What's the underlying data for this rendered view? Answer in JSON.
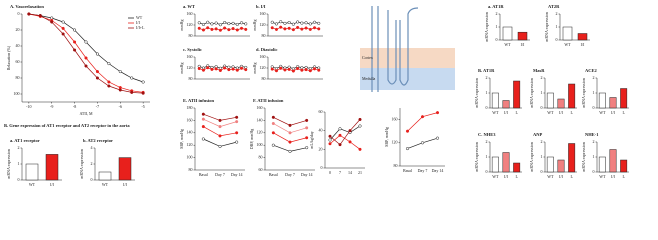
{
  "chart_data": [
    {
      "type": "line",
      "title": "A. Vasorelaxation",
      "x_label": "ATII, M",
      "y_label": "Relaxation (%)",
      "x": [
        -10,
        -9.5,
        -9,
        -8.5,
        -8,
        -7.5,
        -7,
        -6.5,
        -6,
        -5.5,
        -5
      ],
      "xlim": [
        -10.3,
        -4.7
      ],
      "xticks": [
        -10,
        -9,
        -8,
        -7,
        -6,
        -5
      ],
      "ylim": [
        110,
        0
      ],
      "yticks": [
        0,
        20,
        40,
        60,
        80,
        100
      ],
      "series": [
        {
          "name": "WT",
          "color": "#222222",
          "values": [
            0,
            2,
            5,
            10,
            20,
            35,
            50,
            62,
            72,
            80,
            85
          ]
        },
        {
          "name": "I/I",
          "color": "#e8201c",
          "values": [
            0,
            3,
            8,
            18,
            35,
            55,
            72,
            85,
            92,
            96,
            98
          ]
        },
        {
          "name": "I/I+L",
          "color": "#a01010",
          "values": [
            0,
            2,
            10,
            25,
            45,
            65,
            80,
            90,
            95,
            98,
            99
          ]
        }
      ]
    },
    {
      "type": "bar",
      "heading": "B. Gene expression of AT1 receptor and AT2 receptor in the aorta",
      "title": "a. AT1 receptor",
      "y_label": "mRNA expression",
      "categories": [
        "WT",
        "I/I"
      ],
      "values": [
        1,
        1.6
      ],
      "colors": [
        "#ffffff",
        "#e8201c"
      ],
      "ylim": [
        0,
        2
      ],
      "yticks": [
        0,
        1,
        2
      ]
    },
    {
      "type": "bar",
      "title": "b. AT2 receptor",
      "y_label": "mRNA expression",
      "categories": [
        "WT",
        "I/I"
      ],
      "values": [
        1,
        2.8
      ],
      "colors": [
        "#ffffff",
        "#e8201c"
      ],
      "ylim": [
        0,
        4
      ],
      "yticks": [
        0,
        2,
        4
      ]
    },
    {
      "type": "line",
      "title": "a. WT",
      "y_label": "mmHg",
      "x": [
        1,
        2,
        3,
        4,
        5,
        6,
        7,
        8,
        9,
        10,
        11,
        12
      ],
      "xlim": [
        0,
        13
      ],
      "xticks": [],
      "ylim": [
        80,
        160
      ],
      "yticks": [
        80,
        120,
        160
      ],
      "series": [
        {
          "name": "SBP",
          "color": "#222222",
          "values": [
            128,
            122,
            130,
            124,
            127,
            121,
            129,
            125,
            126,
            122,
            128,
            124
          ]
        },
        {
          "name": "DBP",
          "color": "#e8201c",
          "values": [
            108,
            102,
            110,
            104,
            106,
            101,
            109,
            103,
            107,
            102,
            108,
            104
          ]
        }
      ]
    },
    {
      "type": "line",
      "title": "b. I/I",
      "y_label": "mmHg",
      "x": [
        1,
        2,
        3,
        4,
        5,
        6,
        7,
        8,
        9,
        10,
        11,
        12
      ],
      "xlim": [
        0,
        13
      ],
      "xticks": [],
      "ylim": [
        80,
        160
      ],
      "yticks": [
        80,
        120,
        160
      ],
      "series": [
        {
          "name": "SBP",
          "color": "#222222",
          "values": [
            130,
            124,
            132,
            126,
            129,
            123,
            131,
            127,
            128,
            124,
            130,
            126
          ]
        },
        {
          "name": "DBP",
          "color": "#e8201c",
          "values": [
            110,
            104,
            112,
            106,
            108,
            103,
            111,
            105,
            109,
            104,
            110,
            106
          ]
        }
      ]
    },
    {
      "type": "line",
      "title": "c. Systolic",
      "y_label": "mmHg",
      "x": [
        1,
        2,
        3,
        4,
        5,
        6,
        7,
        8,
        9,
        10,
        11,
        12
      ],
      "xlim": [
        0,
        13
      ],
      "xticks": [],
      "ylim": [
        80,
        160
      ],
      "yticks": [
        80,
        120,
        160
      ],
      "series": [
        {
          "name": "WT",
          "color": "#222222",
          "values": [
            126,
            120,
            128,
            122,
            125,
            119,
            127,
            123,
            124,
            120,
            126,
            122
          ]
        },
        {
          "name": "I/I",
          "color": "#e8201c",
          "values": [
            118,
            112,
            121,
            115,
            117,
            111,
            120,
            114,
            116,
            112,
            119,
            114
          ]
        }
      ]
    },
    {
      "type": "line",
      "title": "d. Diastolic",
      "y_label": "mmHg",
      "x": [
        1,
        2,
        3,
        4,
        5,
        6,
        7,
        8,
        9,
        10,
        11,
        12
      ],
      "xlim": [
        0,
        13
      ],
      "xticks": [],
      "ylim": [
        80,
        160
      ],
      "yticks": [
        80,
        120,
        160
      ],
      "series": [
        {
          "name": "WT",
          "color": "#222222",
          "values": [
            124,
            118,
            126,
            120,
            123,
            117,
            125,
            121,
            122,
            118,
            124,
            120
          ]
        },
        {
          "name": "I/I",
          "color": "#e8201c",
          "values": [
            116,
            110,
            119,
            113,
            115,
            109,
            118,
            112,
            114,
            110,
            117,
            112
          ]
        }
      ]
    },
    {
      "type": "line",
      "title": "E. ATII infusion",
      "y_label": "SBP, mmHg",
      "categories": [
        "Basal",
        "Day 7",
        "Day 14"
      ],
      "ylim": [
        80,
        180
      ],
      "yticks": [
        80,
        100,
        120,
        140,
        160,
        180
      ],
      "series": [
        {
          "name": "WT",
          "color": "#222222",
          "values": [
            130,
            118,
            125
          ]
        },
        {
          "name": "I/I",
          "color": "#e8201c",
          "values": [
            150,
            135,
            140
          ]
        },
        {
          "name": "WT+ATII",
          "color": "#f08080",
          "values": [
            162,
            150,
            158
          ]
        },
        {
          "name": "I/I+ATII",
          "color": "#a01010",
          "values": [
            170,
            160,
            165
          ]
        }
      ]
    },
    {
      "type": "line",
      "title": "F. ATII infusion",
      "y_label": "DBP, mmHg",
      "categories": [
        "Basal",
        "Day 7",
        "Day 14"
      ],
      "ylim": [
        60,
        160
      ],
      "yticks": [
        60,
        80,
        100,
        120,
        140,
        160
      ],
      "series": [
        {
          "name": "WT",
          "color": "#222222",
          "values": [
            100,
            90,
            96
          ]
        },
        {
          "name": "I/I",
          "color": "#e8201c",
          "values": [
            120,
            105,
            112
          ]
        },
        {
          "name": "WT+ATII",
          "color": "#f08080",
          "values": [
            135,
            120,
            128
          ]
        },
        {
          "name": "I/I+ATII",
          "color": "#a01010",
          "values": [
            145,
            132,
            140
          ]
        }
      ]
    },
    {
      "type": "line",
      "y_label": "mL/kg/day",
      "categories": [
        "0",
        "7",
        "14",
        "21"
      ],
      "ylim": [
        0,
        60
      ],
      "yticks": [
        0,
        20,
        40,
        60
      ],
      "series": [
        {
          "name": "WT",
          "color": "#222222",
          "values": [
            30,
            42,
            38,
            45
          ]
        },
        {
          "name": "I/I",
          "color": "#e8201c",
          "values": [
            26,
            35,
            28,
            20
          ]
        },
        {
          "name": "I/I+L",
          "color": "#a01010",
          "values": [
            34,
            25,
            40,
            52
          ]
        }
      ]
    },
    {
      "type": "line",
      "y_label": "SBP, mmHg",
      "categories": [
        "Basal",
        "Day 7",
        "Day 14"
      ],
      "ylim": [
        80,
        180
      ],
      "yticks": [
        80,
        120,
        160
      ],
      "series": [
        {
          "name": "WT",
          "color": "#222222",
          "values": [
            110,
            120,
            128
          ]
        },
        {
          "name": "I/I",
          "color": "#e8201c",
          "values": [
            140,
            165,
            172
          ]
        }
      ]
    },
    {
      "type": "bar",
      "title": "a. AT1R",
      "y_label": "mRNA expression",
      "categories": [
        "WT",
        "I/I"
      ],
      "values": [
        1,
        0.6
      ],
      "colors": [
        "#ffffff",
        "#e8201c"
      ],
      "ylim": [
        0,
        2
      ],
      "yticks": [
        0,
        1,
        2
      ]
    },
    {
      "type": "bar",
      "title": "AT2R",
      "y_label": "mRNA expression",
      "categories": [
        "WT",
        "I/I"
      ],
      "values": [
        1,
        0.5
      ],
      "colors": [
        "#ffffff",
        "#e8201c"
      ],
      "ylim": [
        0,
        2
      ],
      "yticks": [
        0,
        1,
        2
      ]
    },
    {
      "type": "bar",
      "title": "B. AT1R",
      "y_label": "mRNA expression",
      "categories": [
        "WT",
        "I/I",
        "L"
      ],
      "values": [
        1,
        0.5,
        1.8
      ],
      "colors": [
        "#ffffff",
        "#f08080",
        "#e8201c"
      ],
      "ylim": [
        0,
        2
      ],
      "yticks": [
        0,
        1,
        2
      ]
    },
    {
      "type": "bar",
      "title": "MasR",
      "y_label": "mRNA expression",
      "categories": [
        "WT",
        "I/I",
        "L"
      ],
      "values": [
        1,
        0.6,
        1.6
      ],
      "colors": [
        "#ffffff",
        "#f08080",
        "#e8201c"
      ],
      "ylim": [
        0,
        2
      ],
      "yticks": [
        0,
        1,
        2
      ]
    },
    {
      "type": "bar",
      "title": "ACE2",
      "y_label": "mRNA expression",
      "categories": [
        "WT",
        "I/I",
        "L"
      ],
      "values": [
        1,
        0.7,
        1.3
      ],
      "colors": [
        "#ffffff",
        "#f08080",
        "#e8201c"
      ],
      "ylim": [
        0,
        2
      ],
      "yticks": [
        0,
        1,
        2
      ]
    },
    {
      "type": "bar",
      "title": "C. NHE3",
      "y_label": "mRNA expression",
      "categories": [
        "WT",
        "I/I",
        "L"
      ],
      "values": [
        1,
        1.3,
        0.6
      ],
      "colors": [
        "#ffffff",
        "#f08080",
        "#e8201c"
      ],
      "ylim": [
        0,
        2
      ],
      "yticks": [
        0,
        1,
        2
      ]
    },
    {
      "type": "bar",
      "title": "ANP",
      "y_label": "mRNA expression",
      "categories": [
        "WT",
        "I/I",
        "L"
      ],
      "values": [
        1,
        0.8,
        1.9
      ],
      "colors": [
        "#ffffff",
        "#f08080",
        "#e8201c"
      ],
      "ylim": [
        0,
        2
      ],
      "yticks": [
        0,
        1,
        2
      ]
    },
    {
      "type": "bar",
      "title": "NHE-1",
      "y_label": "mRNA expression",
      "categories": [
        "WT",
        "I/I",
        "L"
      ],
      "values": [
        1,
        1.5,
        0.8
      ],
      "colors": [
        "#ffffff",
        "#f08080",
        "#e8201c"
      ],
      "ylim": [
        0,
        2
      ],
      "yticks": [
        0,
        1,
        2
      ]
    }
  ],
  "diagram": {
    "labels": [
      "Cortex",
      "Medulla"
    ]
  }
}
